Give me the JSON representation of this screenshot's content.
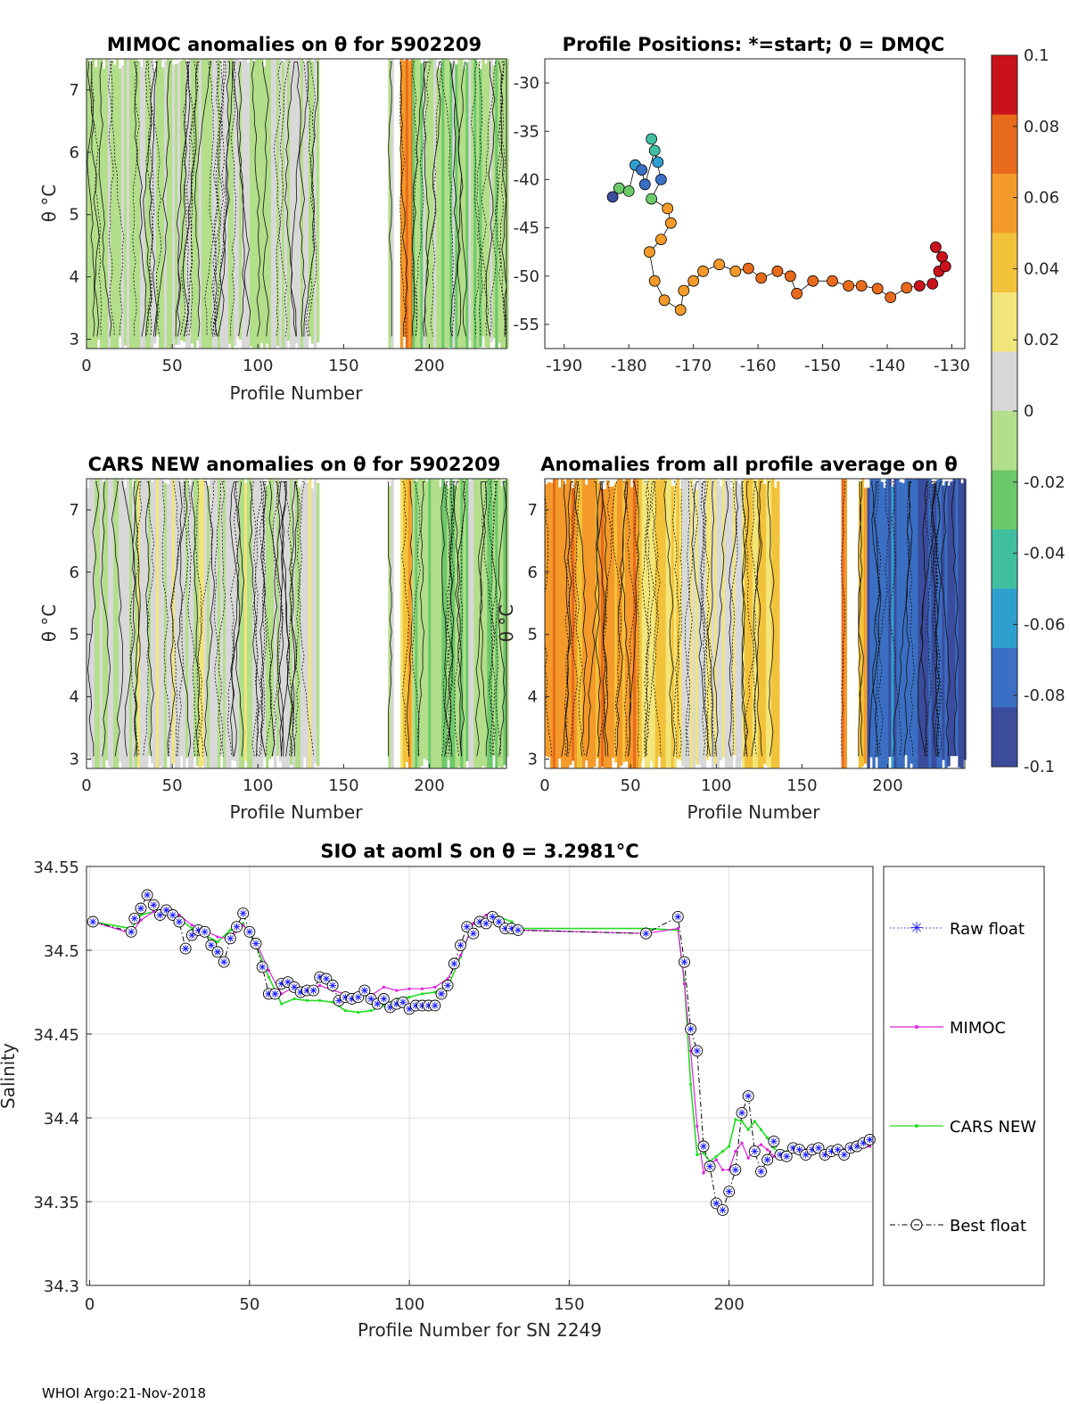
{
  "footer": "WHOI Argo:21-Nov-2018",
  "colorbar": {
    "ticks": [
      "0.1",
      "0.08",
      "0.06",
      "0.04",
      "0.02",
      "0",
      "-0.02",
      "-0.04",
      "-0.06",
      "-0.08",
      "-0.1"
    ],
    "range": [
      -0.1,
      0.1
    ],
    "colors": [
      "#3b4c9c",
      "#3a6fc3",
      "#2f9fd0",
      "#3fbfa0",
      "#6cc96a",
      "#b3de8a",
      "#d8d8d8",
      "#f2e57a",
      "#f2c33a",
      "#f39a2a",
      "#e86a1c",
      "#c9121b"
    ]
  },
  "chart_data": [
    {
      "id": "mimoc",
      "type": "heatmap",
      "title": "MIMOC anomalies on θ  for 5902209",
      "xlabel": "Profile Number",
      "ylabel": "θ °C",
      "xlim": [
        0,
        245
      ],
      "ylim": [
        2.85,
        7.5
      ],
      "xticks": [
        "0",
        "50",
        "100",
        "150",
        "200"
      ],
      "yticks": [
        "3",
        "4",
        "5",
        "6",
        "7"
      ],
      "segments": [
        {
          "x": [
            0,
            135
          ],
          "value": 0.0,
          "note": "grey/light green mix"
        },
        {
          "x": [
            176,
            178
          ],
          "value": 0.0
        },
        {
          "x": [
            183,
            190
          ],
          "value": 0.07
        },
        {
          "x": [
            190,
            245
          ],
          "value": -0.01
        }
      ]
    },
    {
      "id": "positions",
      "type": "scatter",
      "title": "Profile Positions: *=start; 0 = DMQC",
      "xlabel": "",
      "ylabel": "",
      "xlim": [
        -193,
        -128
      ],
      "ylim": [
        -57.5,
        -27.5
      ],
      "xticks": [
        "-190",
        "-180",
        "-170",
        "-160",
        "-150",
        "-140",
        "-130"
      ],
      "yticks": [
        "-30",
        "-35",
        "-40",
        "-45",
        "-50",
        "-55"
      ],
      "track": [
        {
          "lon": -182.5,
          "lat": -41.8,
          "v": -0.09
        },
        {
          "lon": -181.5,
          "lat": -40.9,
          "v": -0.02
        },
        {
          "lon": -180.0,
          "lat": -41.2,
          "v": -0.02
        },
        {
          "lon": -179.0,
          "lat": -38.5,
          "v": -0.06
        },
        {
          "lon": -178.0,
          "lat": -39.0,
          "v": -0.07
        },
        {
          "lon": -177.5,
          "lat": -40.5,
          "v": -0.08
        },
        {
          "lon": -176.0,
          "lat": -37.0,
          "v": -0.05
        },
        {
          "lon": -175.5,
          "lat": -38.2,
          "v": -0.06
        },
        {
          "lon": -176.5,
          "lat": -35.8,
          "v": -0.05
        },
        {
          "lon": -175.0,
          "lat": -40.0,
          "v": -0.07
        },
        {
          "lon": -176.5,
          "lat": -42.0,
          "v": -0.02
        },
        {
          "lon": -174.0,
          "lat": -43.0,
          "v": 0.05
        },
        {
          "lon": -173.5,
          "lat": -44.5,
          "v": 0.05
        },
        {
          "lon": -175.0,
          "lat": -46.2,
          "v": 0.06
        },
        {
          "lon": -176.8,
          "lat": -47.5,
          "v": 0.06
        },
        {
          "lon": -176.0,
          "lat": -50.5,
          "v": 0.06
        },
        {
          "lon": -174.5,
          "lat": -52.5,
          "v": 0.06
        },
        {
          "lon": -172.0,
          "lat": -53.5,
          "v": 0.06
        },
        {
          "lon": -171.5,
          "lat": -51.5,
          "v": 0.06
        },
        {
          "lon": -170.0,
          "lat": -50.5,
          "v": 0.06
        },
        {
          "lon": -168.5,
          "lat": -49.5,
          "v": 0.065
        },
        {
          "lon": -166.0,
          "lat": -48.8,
          "v": 0.065
        },
        {
          "lon": -163.5,
          "lat": -49.5,
          "v": 0.065
        },
        {
          "lon": -161.5,
          "lat": -49.2,
          "v": 0.07
        },
        {
          "lon": -159.5,
          "lat": -50.2,
          "v": 0.07
        },
        {
          "lon": -157.0,
          "lat": -49.5,
          "v": 0.07
        },
        {
          "lon": -155.0,
          "lat": -50.0,
          "v": 0.07
        },
        {
          "lon": -154.0,
          "lat": -51.8,
          "v": 0.07
        },
        {
          "lon": -151.5,
          "lat": -50.5,
          "v": 0.075
        },
        {
          "lon": -148.5,
          "lat": -50.5,
          "v": 0.075
        },
        {
          "lon": -146.0,
          "lat": -51.0,
          "v": 0.075
        },
        {
          "lon": -144.0,
          "lat": -51.0,
          "v": 0.075
        },
        {
          "lon": -141.5,
          "lat": -51.3,
          "v": 0.08
        },
        {
          "lon": -139.5,
          "lat": -52.2,
          "v": 0.08
        },
        {
          "lon": -137.0,
          "lat": -51.2,
          "v": 0.08
        },
        {
          "lon": -135.0,
          "lat": -51.0,
          "v": 0.085
        },
        {
          "lon": -133.0,
          "lat": -50.8,
          "v": 0.09
        },
        {
          "lon": -132.0,
          "lat": -49.5,
          "v": 0.095
        },
        {
          "lon": -131.5,
          "lat": -48.0,
          "v": 0.1
        },
        {
          "lon": -132.5,
          "lat": -47.0,
          "v": 0.1
        },
        {
          "lon": -131.0,
          "lat": -49.0,
          "v": 0.1
        }
      ]
    },
    {
      "id": "cars",
      "type": "heatmap",
      "title": "CARS NEW anomalies on θ for 5902209",
      "xlabel": "Profile Number",
      "ylabel": "θ °C",
      "xlim": [
        0,
        245
      ],
      "ylim": [
        2.85,
        7.5
      ],
      "xticks": [
        "0",
        "50",
        "100",
        "150",
        "200"
      ],
      "yticks": [
        "3",
        "4",
        "5",
        "6",
        "7"
      ],
      "segments": [
        {
          "x": [
            0,
            135
          ],
          "value": 0.005
        },
        {
          "x": [
            176,
            178
          ],
          "value": 0.0
        },
        {
          "x": [
            183,
            190
          ],
          "value": 0.04
        },
        {
          "x": [
            190,
            245
          ],
          "value": -0.01
        }
      ]
    },
    {
      "id": "average",
      "type": "heatmap",
      "title": "Anomalies from all profile average on θ",
      "xlabel": "Profile Number",
      "ylabel": "θ °C",
      "xlim": [
        0,
        245
      ],
      "ylim": [
        2.85,
        7.5
      ],
      "xticks": [
        "0",
        "50",
        "100",
        "150",
        "200"
      ],
      "yticks": [
        "3",
        "4",
        "5",
        "6",
        "7"
      ],
      "segments": [
        {
          "x": [
            0,
            55
          ],
          "value": 0.055
        },
        {
          "x": [
            55,
            80
          ],
          "value": 0.035
        },
        {
          "x": [
            80,
            115
          ],
          "value": 0.015
        },
        {
          "x": [
            115,
            136
          ],
          "value": 0.035
        },
        {
          "x": [
            173,
            175
          ],
          "value": 0.06
        },
        {
          "x": [
            183,
            188
          ],
          "value": 0.05
        },
        {
          "x": [
            188,
            245
          ],
          "value": -0.08
        }
      ]
    },
    {
      "id": "salinity",
      "type": "line",
      "title": "SIO at aoml S on θ = 3.2981°C",
      "xlabel": "Profile Number for SN 2249",
      "ylabel": "Salinity",
      "xlim": [
        -1,
        245
      ],
      "ylim": [
        34.3,
        34.55
      ],
      "xticks": [
        "0",
        "50",
        "100",
        "150",
        "200"
      ],
      "yticks": [
        "34.3",
        "34.35",
        "34.4",
        "34.45",
        "34.5",
        "34.55"
      ],
      "legend": [
        "Raw float",
        "MIMOC",
        "CARS NEW",
        "Best float"
      ],
      "series": [
        {
          "name": "Best float",
          "x": [
            1,
            13,
            14,
            16,
            18,
            20,
            22,
            24,
            26,
            28,
            30,
            32,
            34,
            36,
            38,
            40,
            42,
            44,
            46,
            48,
            50,
            52,
            54,
            56,
            58,
            60,
            62,
            64,
            66,
            68,
            70,
            72,
            74,
            76,
            78,
            80,
            82,
            84,
            86,
            88,
            90,
            92,
            94,
            96,
            98,
            100,
            102,
            104,
            106,
            108,
            110,
            112,
            114,
            116,
            118,
            120,
            122,
            124,
            126,
            128,
            130,
            132,
            134,
            174,
            184,
            186,
            188,
            190,
            192,
            194,
            196,
            198,
            200,
            202,
            204,
            206,
            208,
            210,
            212,
            214,
            216,
            218,
            220,
            222,
            224,
            226,
            228,
            230,
            232,
            234,
            236,
            238,
            240,
            242,
            244
          ],
          "y": [
            34.517,
            34.511,
            34.519,
            34.525,
            34.533,
            34.527,
            34.521,
            34.524,
            34.521,
            34.517,
            34.501,
            34.509,
            34.512,
            34.511,
            34.503,
            34.499,
            34.493,
            34.507,
            34.514,
            34.522,
            34.511,
            34.504,
            34.49,
            34.474,
            34.474,
            34.48,
            34.481,
            34.478,
            34.475,
            34.476,
            34.476,
            34.484,
            34.483,
            34.479,
            34.47,
            34.472,
            34.471,
            34.472,
            34.476,
            34.471,
            34.468,
            34.471,
            34.466,
            34.468,
            34.469,
            34.465,
            34.467,
            34.467,
            34.467,
            34.467,
            34.474,
            34.479,
            34.492,
            34.503,
            34.514,
            34.51,
            34.517,
            34.516,
            34.52,
            34.517,
            34.513,
            34.513,
            34.512,
            34.51,
            34.52,
            34.493,
            34.453,
            34.44,
            34.383,
            34.371,
            34.349,
            34.345,
            34.356,
            34.369,
            34.403,
            34.413,
            34.38,
            34.368,
            34.375,
            34.386,
            34.378,
            34.377,
            34.382,
            34.381,
            34.378,
            34.381,
            34.382,
            34.378,
            34.38,
            34.381,
            34.378,
            34.382,
            34.383,
            34.385,
            34.387
          ]
        },
        {
          "name": "MIMOC",
          "x": [
            1,
            13,
            16,
            20,
            24,
            28,
            32,
            36,
            40,
            44,
            48,
            52,
            56,
            60,
            64,
            68,
            72,
            76,
            80,
            84,
            88,
            92,
            96,
            100,
            104,
            108,
            112,
            116,
            120,
            124,
            128,
            132,
            134,
            174,
            184,
            186,
            188,
            190,
            192,
            194,
            196,
            198,
            200,
            202,
            204,
            206,
            208,
            210,
            212,
            214,
            216,
            218,
            220,
            224,
            228,
            232,
            236,
            240,
            244
          ],
          "y": [
            34.517,
            34.51,
            34.518,
            34.523,
            34.523,
            34.521,
            34.515,
            34.512,
            34.508,
            34.507,
            34.515,
            34.505,
            34.488,
            34.474,
            34.478,
            34.476,
            34.479,
            34.476,
            34.474,
            34.473,
            34.473,
            34.478,
            34.476,
            34.477,
            34.477,
            34.478,
            34.483,
            34.497,
            34.516,
            34.521,
            34.517,
            34.514,
            34.512,
            34.51,
            34.513,
            34.48,
            34.44,
            34.395,
            34.367,
            34.373,
            34.375,
            34.369,
            34.369,
            34.38,
            34.385,
            34.376,
            34.382,
            34.384,
            34.381,
            34.377,
            34.38,
            34.379,
            34.38,
            34.381,
            34.381,
            34.38,
            34.381,
            34.382,
            34.383
          ]
        },
        {
          "name": "CARS NEW",
          "x": [
            1,
            13,
            16,
            20,
            24,
            28,
            32,
            36,
            40,
            44,
            48,
            52,
            56,
            60,
            64,
            68,
            72,
            76,
            80,
            84,
            88,
            92,
            96,
            100,
            104,
            108,
            112,
            116,
            120,
            124,
            128,
            132,
            134,
            174,
            184,
            186,
            188,
            190,
            192,
            194,
            196,
            198,
            200,
            202,
            204,
            206,
            208,
            210,
            212,
            214,
            216,
            218,
            220,
            224,
            228,
            232,
            236,
            240,
            244
          ],
          "y": [
            34.517,
            34.513,
            34.521,
            34.523,
            34.522,
            34.519,
            34.513,
            34.509,
            34.505,
            34.512,
            34.516,
            34.503,
            34.484,
            34.468,
            34.471,
            34.47,
            34.47,
            34.469,
            34.464,
            34.463,
            34.464,
            34.467,
            34.471,
            34.472,
            34.474,
            34.475,
            34.478,
            34.496,
            34.516,
            34.521,
            34.52,
            34.517,
            34.513,
            34.513,
            34.512,
            34.482,
            34.42,
            34.378,
            34.379,
            34.374,
            34.377,
            34.38,
            34.383,
            34.399,
            34.398,
            34.393,
            34.398,
            34.393,
            34.388,
            34.382,
            34.379,
            34.38,
            34.381,
            34.381,
            34.382,
            34.38,
            34.381,
            34.383,
            34.385
          ]
        }
      ]
    }
  ]
}
